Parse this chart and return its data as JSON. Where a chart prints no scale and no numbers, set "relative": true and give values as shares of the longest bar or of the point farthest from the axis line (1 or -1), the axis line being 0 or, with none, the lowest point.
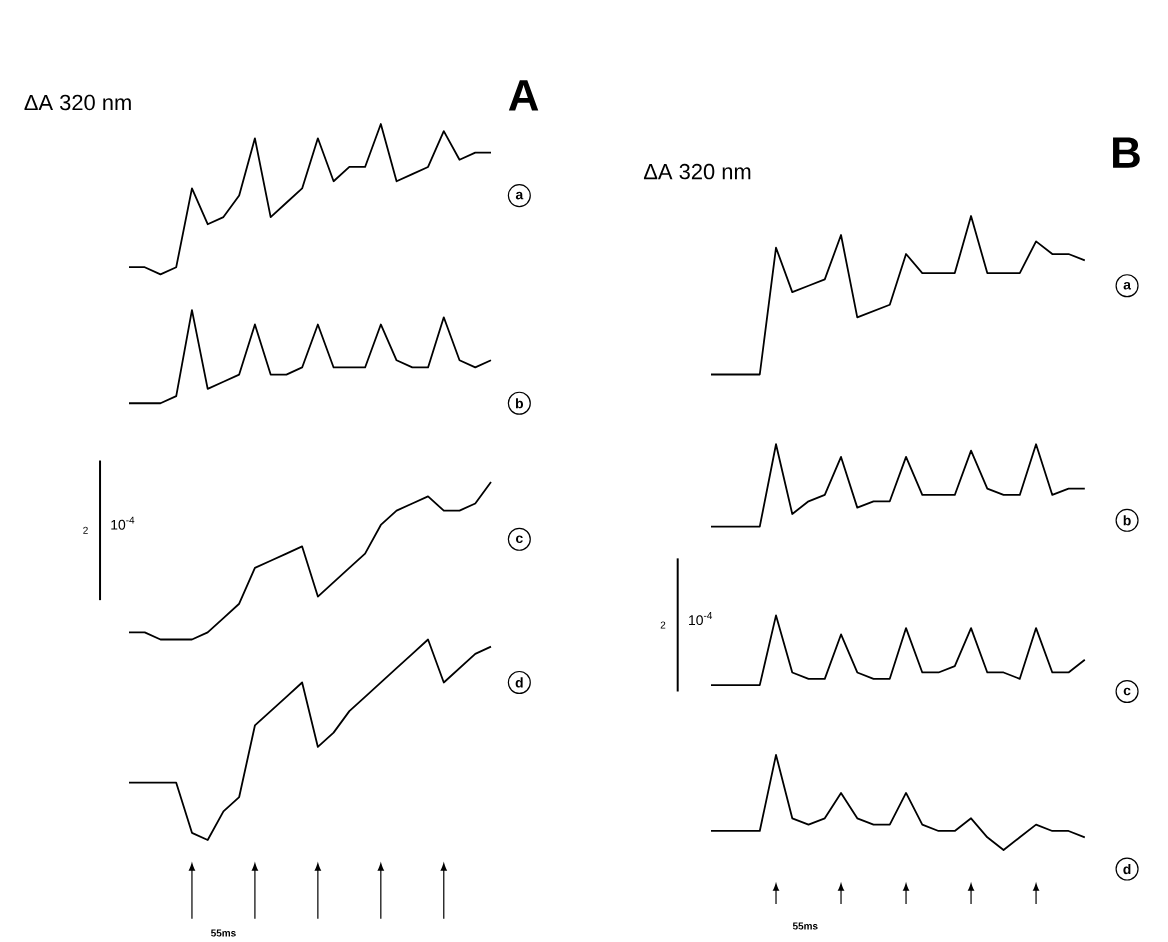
{
  "chart_data": [
    {
      "type": "line",
      "title": "A",
      "ylabel": "ΔA 320 nm",
      "relative": true,
      "legend": false,
      "marker": "none",
      "line_style": "solid",
      "categories": [
        null,
        null,
        null,
        null,
        null,
        null,
        null,
        null,
        null,
        null,
        null,
        null,
        null,
        null,
        null,
        null,
        null,
        null,
        null,
        null,
        null,
        null,
        null,
        null
      ],
      "series": [
        {
          "name": "a",
          "color": "#000000",
          "values": [
            0.8,
            0.8,
            0.79,
            0.8,
            0.91,
            0.86,
            0.87,
            0.9,
            0.98,
            0.87,
            0.89,
            0.91,
            0.98,
            0.92,
            0.94,
            0.94,
            1,
            0.92,
            0.93,
            0.94,
            0.99,
            0.95,
            0.96,
            0.96
          ]
        },
        {
          "name": "b",
          "color": "#000000",
          "values": [
            0.61,
            0.61,
            0.61,
            0.62,
            0.74,
            0.63,
            0.64,
            0.65,
            0.72,
            0.65,
            0.65,
            0.66,
            0.72,
            0.66,
            0.66,
            0.66,
            0.72,
            0.67,
            0.66,
            0.66,
            0.73,
            0.67,
            0.66,
            0.67
          ]
        },
        {
          "name": "c",
          "color": "#000000",
          "values": [
            0.29,
            0.29,
            0.28,
            0.28,
            0.28,
            0.29,
            0.31,
            0.33,
            0.38,
            0.39,
            0.4,
            0.41,
            0.34,
            0.36,
            0.38,
            0.4,
            0.44,
            0.46,
            0.47,
            0.48,
            0.46,
            0.46,
            0.47,
            0.5
          ]
        },
        {
          "name": "d",
          "color": "#000000",
          "values": [
            0.08,
            0.08,
            0.08,
            0.08,
            0.01,
            0,
            0.04,
            0.06,
            0.16,
            0.18,
            0.2,
            0.22,
            0.13,
            0.15,
            0.18,
            0.2,
            0.22,
            0.24,
            0.26,
            0.28,
            0.22,
            0.24,
            0.26,
            0.27
          ]
        }
      ],
      "annotations": [
        "2",
        "10$^{-4}$",
        "55ms"
      ]
    },
    {
      "type": "line",
      "title": "B",
      "ylabel": "ΔA 320 nm",
      "relative": true,
      "legend": false,
      "marker": "none",
      "line_style": "solid",
      "categories": [
        null,
        null,
        null,
        null,
        null,
        null,
        null,
        null,
        null,
        null,
        null,
        null,
        null,
        null,
        null,
        null,
        null,
        null,
        null,
        null,
        null,
        null,
        null,
        null
      ],
      "series": [
        {
          "name": "a",
          "color": "#000000",
          "values": [
            0.75,
            0.75,
            0.75,
            0.75,
            0.95,
            0.88,
            0.89,
            0.9,
            0.97,
            0.84,
            0.85,
            0.86,
            0.94,
            0.91,
            0.91,
            0.91,
            1,
            0.91,
            0.91,
            0.91,
            0.96,
            0.94,
            0.94,
            0.93
          ]
        },
        {
          "name": "b",
          "color": "#000000",
          "values": [
            0.51,
            0.51,
            0.51,
            0.51,
            0.64,
            0.53,
            0.55,
            0.56,
            0.62,
            0.54,
            0.55,
            0.55,
            0.62,
            0.56,
            0.56,
            0.56,
            0.63,
            0.57,
            0.56,
            0.56,
            0.64,
            0.56,
            0.57,
            0.57
          ]
        },
        {
          "name": "c",
          "color": "#000000",
          "values": [
            0.26,
            0.26,
            0.26,
            0.26,
            0.37,
            0.28,
            0.27,
            0.27,
            0.34,
            0.28,
            0.27,
            0.27,
            0.35,
            0.28,
            0.28,
            0.29,
            0.35,
            0.28,
            0.28,
            0.27,
            0.35,
            0.28,
            0.28,
            0.3
          ]
        },
        {
          "name": "d",
          "color": "#000000",
          "values": [
            0.03,
            0.03,
            0.03,
            0.03,
            0.15,
            0.05,
            0.04,
            0.05,
            0.09,
            0.05,
            0.04,
            0.04,
            0.09,
            0.04,
            0.03,
            0.03,
            0.05,
            0.02,
            0,
            0.02,
            0.04,
            0.03,
            0.03,
            0.02
          ]
        }
      ],
      "annotations": [
        "2",
        "10$^{-4}$",
        "55ms"
      ]
    }
  ]
}
